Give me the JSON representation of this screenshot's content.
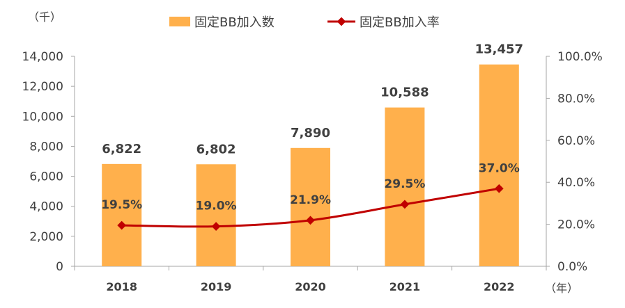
{
  "chart_data": {
    "type": "bar",
    "categories": [
      "2018",
      "2019",
      "2020",
      "2021",
      "2022"
    ],
    "series": [
      {
        "name": "固定BB加入数",
        "type": "bar",
        "axis": "left",
        "values": [
          6822,
          6802,
          7890,
          10588,
          13457
        ],
        "labels": [
          "6,822",
          "6,802",
          "7,890",
          "10,588",
          "13,457"
        ],
        "color": "#FFB04C"
      },
      {
        "name": "固定BB加入率",
        "type": "line",
        "axis": "right",
        "values": [
          19.5,
          19.0,
          21.9,
          29.5,
          37.0
        ],
        "labels": [
          "19.5%",
          "19.0%",
          "21.9%",
          "29.5%",
          "37.0%"
        ],
        "color": "#C00000"
      }
    ],
    "ylim": [
      0,
      14000
    ],
    "yticks": [
      "0",
      "2,000",
      "4,000",
      "6,000",
      "8,000",
      "10,000",
      "12,000",
      "14,000"
    ],
    "y2lim": [
      0,
      100
    ],
    "y2ticks": [
      "0.0%",
      "20.0%",
      "40.0%",
      "60.0%",
      "80.0%",
      "100.0%"
    ],
    "left_unit": "（千）",
    "x_unit": "（年）",
    "legend_position": "top",
    "grid": false
  }
}
